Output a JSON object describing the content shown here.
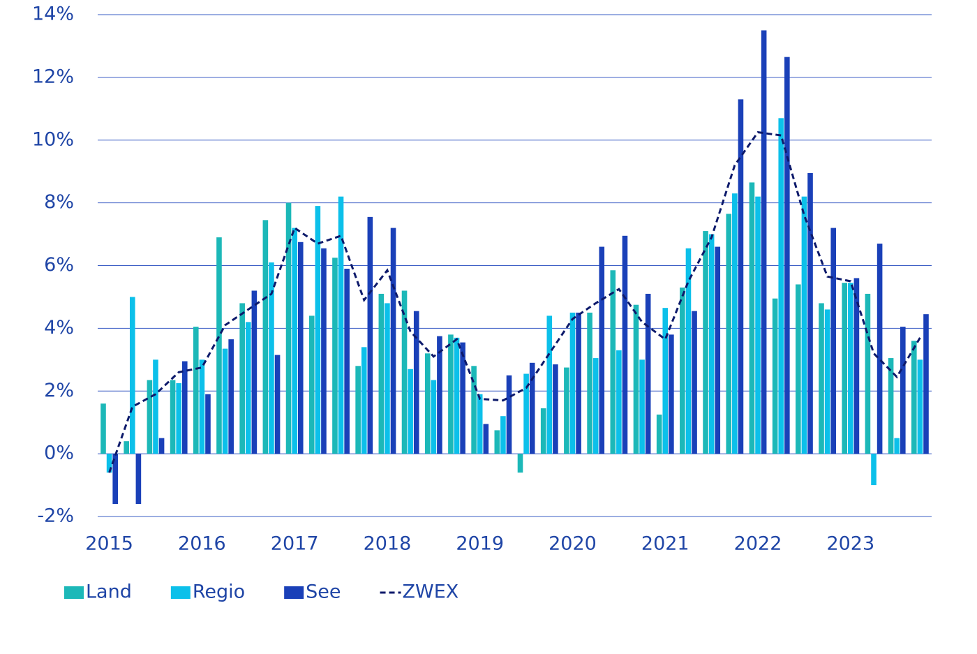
{
  "chart_data": {
    "type": "bar",
    "categories": [
      "2015",
      null,
      null,
      null,
      "2016",
      null,
      null,
      null,
      "2017",
      null,
      null,
      null,
      "2018",
      null,
      null,
      null,
      "2019",
      null,
      null,
      null,
      "2020",
      null,
      null,
      null,
      "2021",
      null,
      null,
      null,
      "2022",
      null,
      null,
      null,
      "2023",
      null,
      null,
      null
    ],
    "series": [
      {
        "name": "Land",
        "color": "#1cb8b8",
        "values": [
          1.6,
          0.4,
          2.35,
          2.35,
          4.05,
          6.9,
          4.8,
          7.45,
          8.0,
          4.4,
          6.25,
          2.8,
          5.1,
          5.2,
          3.2,
          3.8,
          2.8,
          0.75,
          -0.6,
          1.45,
          2.75,
          4.5,
          5.85,
          4.75,
          1.25,
          5.3,
          7.1,
          7.65,
          8.65,
          4.95,
          5.4,
          4.8,
          5.45,
          5.1,
          3.05,
          3.6
        ]
      },
      {
        "name": "Regio",
        "color": "#0cc0ea",
        "values": [
          -0.6,
          5.0,
          3.0,
          2.25,
          3.0,
          3.35,
          4.2,
          6.1,
          7.2,
          7.9,
          8.2,
          3.4,
          4.8,
          2.7,
          2.35,
          3.7,
          1.9,
          1.2,
          2.55,
          4.4,
          4.5,
          3.05,
          3.3,
          3.0,
          4.65,
          6.55,
          7.0,
          8.3,
          8.2,
          10.7,
          8.2,
          4.6,
          5.45,
          -1.0,
          0.5,
          3.0
        ]
      },
      {
        "name": "See",
        "color": "#1a40b8",
        "values": [
          -1.6,
          -1.6,
          0.5,
          2.95,
          1.9,
          3.65,
          5.2,
          3.15,
          6.75,
          6.55,
          5.9,
          7.55,
          7.2,
          4.55,
          3.75,
          3.55,
          0.95,
          2.5,
          2.9,
          2.85,
          4.5,
          6.6,
          6.95,
          5.1,
          3.8,
          4.55,
          6.6,
          11.3,
          13.5,
          12.65,
          8.95,
          7.2,
          5.6,
          6.7,
          4.05,
          4.45
        ]
      },
      {
        "name": "ZWEX",
        "color": "#0d1a6b",
        "type": "line",
        "dashed": true,
        "values": [
          -0.6,
          1.5,
          1.9,
          2.6,
          2.75,
          4.1,
          4.6,
          5.1,
          7.2,
          6.7,
          6.95,
          4.9,
          5.85,
          3.9,
          3.1,
          3.65,
          1.75,
          1.7,
          2.1,
          3.2,
          4.3,
          4.8,
          5.25,
          4.2,
          3.65,
          5.5,
          6.9,
          9.2,
          10.25,
          10.15,
          7.6,
          5.65,
          5.5,
          3.2,
          2.45,
          3.7
        ]
      }
    ],
    "ylim": [
      -2,
      14
    ],
    "yticks": [
      {
        "value": -2,
        "label": "-2%"
      },
      {
        "value": 0,
        "label": "0%"
      },
      {
        "value": 2,
        "label": "2%"
      },
      {
        "value": 4,
        "label": "4%"
      },
      {
        "value": 6,
        "label": "6%"
      },
      {
        "value": 8,
        "label": "8%"
      },
      {
        "value": 10,
        "label": "10%"
      },
      {
        "value": 12,
        "label": "12%"
      },
      {
        "value": 14,
        "label": "14%"
      }
    ],
    "grid": true,
    "legend": "bottom-left"
  }
}
